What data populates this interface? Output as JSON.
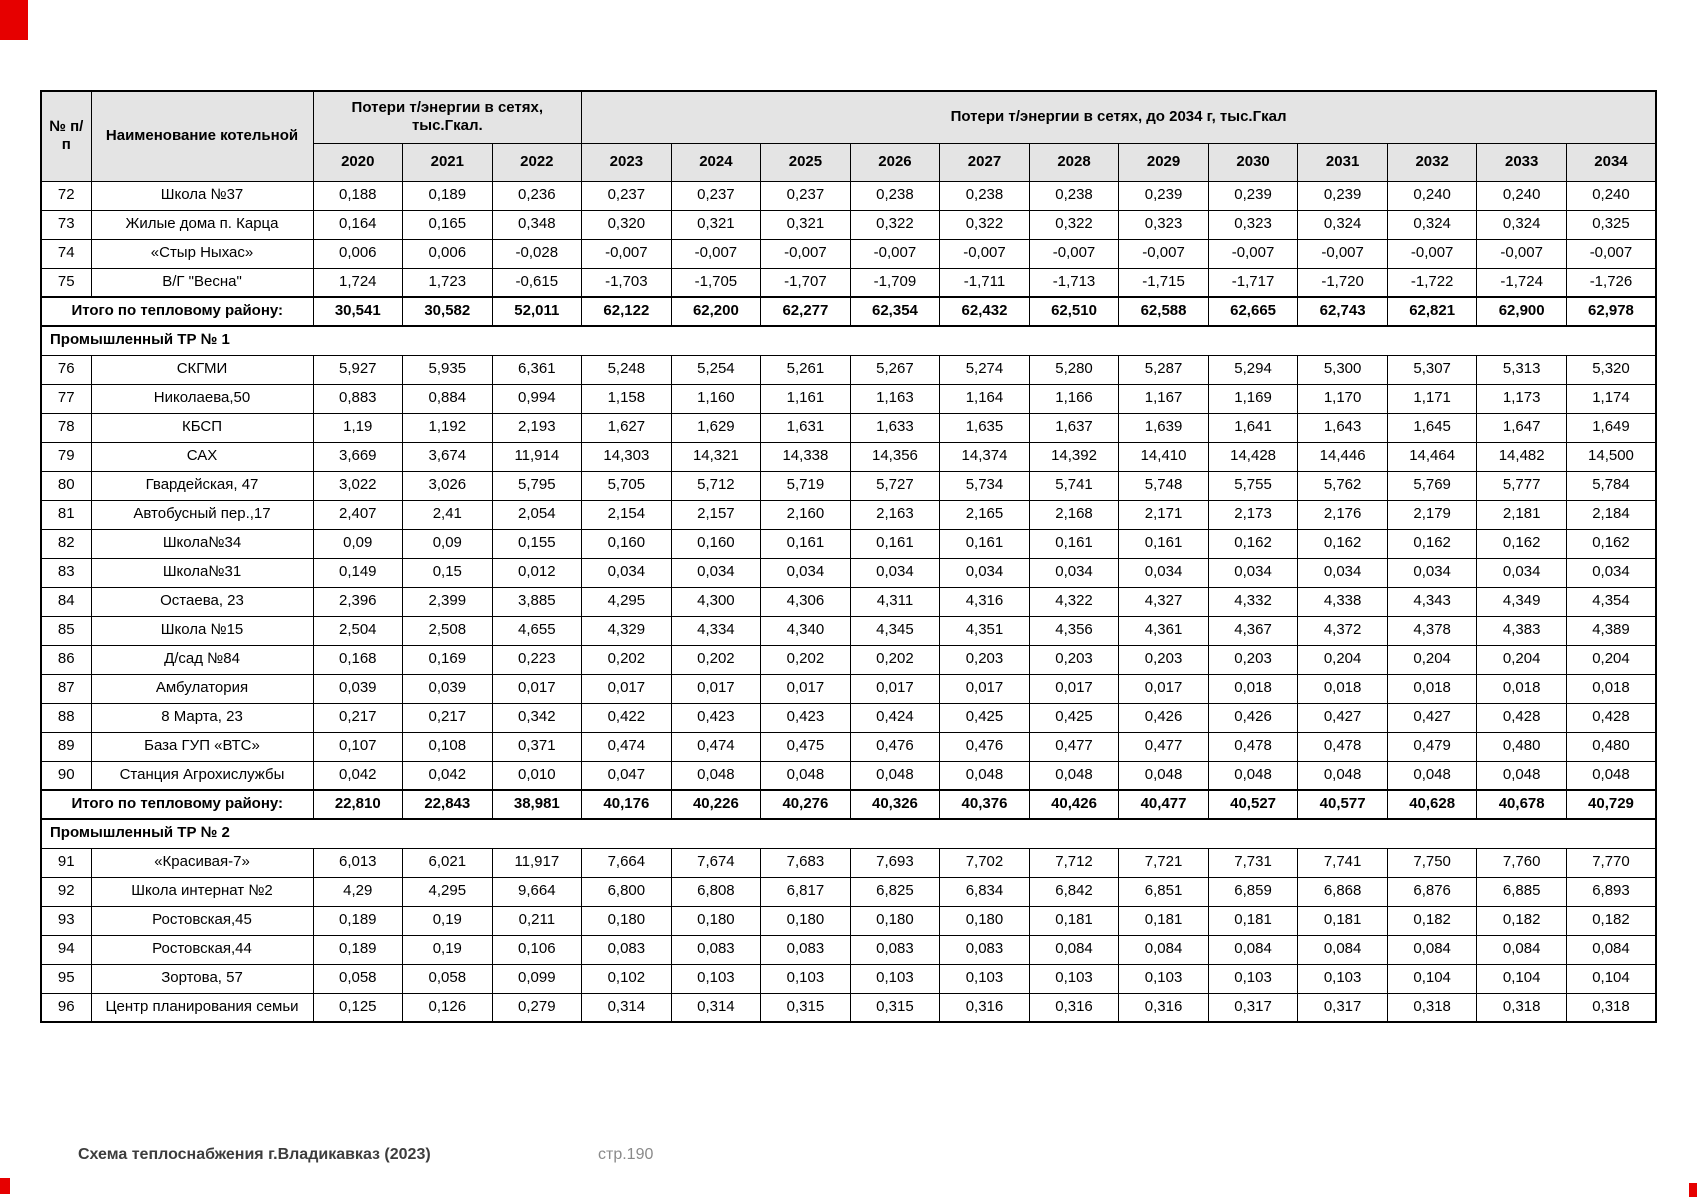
{
  "footer": {
    "left": "Схема теплоснабжения г.Владикавказ (2023)",
    "page": "стр.190"
  },
  "table": {
    "header": {
      "num": "№ п/п",
      "name": "Наименование котельной",
      "group1": "Потери т/энергии в сетях, тыс.Гкал.",
      "group2": "Потери т/энергии в сетях, до 2034 г, тыс.Гкал",
      "years": [
        "2020",
        "2021",
        "2022",
        "2023",
        "2024",
        "2025",
        "2026",
        "2027",
        "2028",
        "2029",
        "2030",
        "2031",
        "2032",
        "2033",
        "2034"
      ]
    },
    "sections": [
      {
        "title": null,
        "rows": [
          {
            "num": "72",
            "name": "Школа №37",
            "values": [
              "0,188",
              "0,189",
              "0,236",
              "0,237",
              "0,237",
              "0,237",
              "0,238",
              "0,238",
              "0,238",
              "0,239",
              "0,239",
              "0,239",
              "0,240",
              "0,240",
              "0,240"
            ]
          },
          {
            "num": "73",
            "name": "Жилые дома п. Карца",
            "values": [
              "0,164",
              "0,165",
              "0,348",
              "0,320",
              "0,321",
              "0,321",
              "0,322",
              "0,322",
              "0,322",
              "0,323",
              "0,323",
              "0,324",
              "0,324",
              "0,324",
              "0,325"
            ]
          },
          {
            "num": "74",
            "name": "«Стыр Ныхас»",
            "values": [
              "0,006",
              "0,006",
              "-0,028",
              "-0,007",
              "-0,007",
              "-0,007",
              "-0,007",
              "-0,007",
              "-0,007",
              "-0,007",
              "-0,007",
              "-0,007",
              "-0,007",
              "-0,007",
              "-0,007"
            ]
          },
          {
            "num": "75",
            "name": "В/Г \"Весна\"",
            "values": [
              "1,724",
              "1,723",
              "-0,615",
              "-1,703",
              "-1,705",
              "-1,707",
              "-1,709",
              "-1,711",
              "-1,713",
              "-1,715",
              "-1,717",
              "-1,720",
              "-1,722",
              "-1,724",
              "-1,726"
            ]
          }
        ],
        "total": {
          "label": "Итого по тепловому району:",
          "values": [
            "30,541",
            "30,582",
            "52,011",
            "62,122",
            "62,200",
            "62,277",
            "62,354",
            "62,432",
            "62,510",
            "62,588",
            "62,665",
            "62,743",
            "62,821",
            "62,900",
            "62,978"
          ]
        }
      },
      {
        "title": "Промышленный ТР № 1",
        "rows": [
          {
            "num": "76",
            "name": "СКГМИ",
            "values": [
              "5,927",
              "5,935",
              "6,361",
              "5,248",
              "5,254",
              "5,261",
              "5,267",
              "5,274",
              "5,280",
              "5,287",
              "5,294",
              "5,300",
              "5,307",
              "5,313",
              "5,320"
            ]
          },
          {
            "num": "77",
            "name": "Николаева,50",
            "values": [
              "0,883",
              "0,884",
              "0,994",
              "1,158",
              "1,160",
              "1,161",
              "1,163",
              "1,164",
              "1,166",
              "1,167",
              "1,169",
              "1,170",
              "1,171",
              "1,173",
              "1,174"
            ]
          },
          {
            "num": "78",
            "name": "КБСП",
            "values": [
              "1,19",
              "1,192",
              "2,193",
              "1,627",
              "1,629",
              "1,631",
              "1,633",
              "1,635",
              "1,637",
              "1,639",
              "1,641",
              "1,643",
              "1,645",
              "1,647",
              "1,649"
            ]
          },
          {
            "num": "79",
            "name": "САХ",
            "values": [
              "3,669",
              "3,674",
              "11,914",
              "14,303",
              "14,321",
              "14,338",
              "14,356",
              "14,374",
              "14,392",
              "14,410",
              "14,428",
              "14,446",
              "14,464",
              "14,482",
              "14,500"
            ]
          },
          {
            "num": "80",
            "name": "Гвардейская, 47",
            "values": [
              "3,022",
              "3,026",
              "5,795",
              "5,705",
              "5,712",
              "5,719",
              "5,727",
              "5,734",
              "5,741",
              "5,748",
              "5,755",
              "5,762",
              "5,769",
              "5,777",
              "5,784"
            ]
          },
          {
            "num": "81",
            "name": "Автобусный пер.,17",
            "values": [
              "2,407",
              "2,41",
              "2,054",
              "2,154",
              "2,157",
              "2,160",
              "2,163",
              "2,165",
              "2,168",
              "2,171",
              "2,173",
              "2,176",
              "2,179",
              "2,181",
              "2,184"
            ]
          },
          {
            "num": "82",
            "name": "Школа№34",
            "values": [
              "0,09",
              "0,09",
              "0,155",
              "0,160",
              "0,160",
              "0,161",
              "0,161",
              "0,161",
              "0,161",
              "0,161",
              "0,162",
              "0,162",
              "0,162",
              "0,162",
              "0,162"
            ]
          },
          {
            "num": "83",
            "name": "Школа№31",
            "values": [
              "0,149",
              "0,15",
              "0,012",
              "0,034",
              "0,034",
              "0,034",
              "0,034",
              "0,034",
              "0,034",
              "0,034",
              "0,034",
              "0,034",
              "0,034",
              "0,034",
              "0,034"
            ]
          },
          {
            "num": "84",
            "name": "Остаева, 23",
            "values": [
              "2,396",
              "2,399",
              "3,885",
              "4,295",
              "4,300",
              "4,306",
              "4,311",
              "4,316",
              "4,322",
              "4,327",
              "4,332",
              "4,338",
              "4,343",
              "4,349",
              "4,354"
            ]
          },
          {
            "num": "85",
            "name": "Школа №15",
            "values": [
              "2,504",
              "2,508",
              "4,655",
              "4,329",
              "4,334",
              "4,340",
              "4,345",
              "4,351",
              "4,356",
              "4,361",
              "4,367",
              "4,372",
              "4,378",
              "4,383",
              "4,389"
            ]
          },
          {
            "num": "86",
            "name": "Д/сад №84",
            "values": [
              "0,168",
              "0,169",
              "0,223",
              "0,202",
              "0,202",
              "0,202",
              "0,202",
              "0,203",
              "0,203",
              "0,203",
              "0,203",
              "0,204",
              "0,204",
              "0,204",
              "0,204"
            ]
          },
          {
            "num": "87",
            "name": "Амбулатория",
            "values": [
              "0,039",
              "0,039",
              "0,017",
              "0,017",
              "0,017",
              "0,017",
              "0,017",
              "0,017",
              "0,017",
              "0,017",
              "0,018",
              "0,018",
              "0,018",
              "0,018",
              "0,018"
            ]
          },
          {
            "num": "88",
            "name": "8 Марта, 23",
            "values": [
              "0,217",
              "0,217",
              "0,342",
              "0,422",
              "0,423",
              "0,423",
              "0,424",
              "0,425",
              "0,425",
              "0,426",
              "0,426",
              "0,427",
              "0,427",
              "0,428",
              "0,428"
            ]
          },
          {
            "num": "89",
            "name": "База ГУП «ВТС»",
            "values": [
              "0,107",
              "0,108",
              "0,371",
              "0,474",
              "0,474",
              "0,475",
              "0,476",
              "0,476",
              "0,477",
              "0,477",
              "0,478",
              "0,478",
              "0,479",
              "0,480",
              "0,480"
            ]
          },
          {
            "num": "90",
            "name": "Станция Агрохислужбы",
            "values": [
              "0,042",
              "0,042",
              "0,010",
              "0,047",
              "0,048",
              "0,048",
              "0,048",
              "0,048",
              "0,048",
              "0,048",
              "0,048",
              "0,048",
              "0,048",
              "0,048",
              "0,048"
            ]
          }
        ],
        "total": {
          "label": "Итого по тепловому району:",
          "values": [
            "22,810",
            "22,843",
            "38,981",
            "40,176",
            "40,226",
            "40,276",
            "40,326",
            "40,376",
            "40,426",
            "40,477",
            "40,527",
            "40,577",
            "40,628",
            "40,678",
            "40,729"
          ]
        }
      },
      {
        "title": "Промышленный ТР № 2",
        "rows": [
          {
            "num": "91",
            "name": "«Красивая-7»",
            "values": [
              "6,013",
              "6,021",
              "11,917",
              "7,664",
              "7,674",
              "7,683",
              "7,693",
              "7,702",
              "7,712",
              "7,721",
              "7,731",
              "7,741",
              "7,750",
              "7,760",
              "7,770"
            ]
          },
          {
            "num": "92",
            "name": "Школа интернат №2",
            "values": [
              "4,29",
              "4,295",
              "9,664",
              "6,800",
              "6,808",
              "6,817",
              "6,825",
              "6,834",
              "6,842",
              "6,851",
              "6,859",
              "6,868",
              "6,876",
              "6,885",
              "6,893"
            ]
          },
          {
            "num": "93",
            "name": "Ростовская,45",
            "values": [
              "0,189",
              "0,19",
              "0,211",
              "0,180",
              "0,180",
              "0,180",
              "0,180",
              "0,180",
              "0,181",
              "0,181",
              "0,181",
              "0,181",
              "0,182",
              "0,182",
              "0,182"
            ]
          },
          {
            "num": "94",
            "name": "Ростовская,44",
            "values": [
              "0,189",
              "0,19",
              "0,106",
              "0,083",
              "0,083",
              "0,083",
              "0,083",
              "0,083",
              "0,084",
              "0,084",
              "0,084",
              "0,084",
              "0,084",
              "0,084",
              "0,084"
            ]
          },
          {
            "num": "95",
            "name": "Зортова, 57",
            "values": [
              "0,058",
              "0,058",
              "0,099",
              "0,102",
              "0,103",
              "0,103",
              "0,103",
              "0,103",
              "0,103",
              "0,103",
              "0,103",
              "0,103",
              "0,104",
              "0,104",
              "0,104"
            ]
          },
          {
            "num": "96",
            "name": "Центр планирования семьи",
            "values": [
              "0,125",
              "0,126",
              "0,279",
              "0,314",
              "0,314",
              "0,315",
              "0,315",
              "0,316",
              "0,316",
              "0,316",
              "0,317",
              "0,317",
              "0,318",
              "0,318",
              "0,318"
            ]
          }
        ],
        "total": null
      }
    ]
  }
}
